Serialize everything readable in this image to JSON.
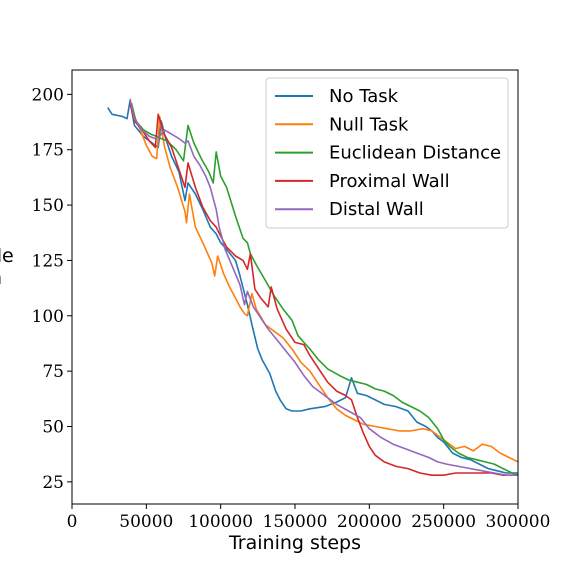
{
  "chart_data": {
    "type": "line",
    "xlabel": "Training steps",
    "ylabel": "de\nh",
    "xlim": [
      0,
      300000
    ],
    "ylim": [
      15,
      211
    ],
    "xticks": [
      0,
      50000,
      100000,
      150000,
      200000,
      250000,
      300000
    ],
    "yticks": [
      25,
      50,
      75,
      100,
      125,
      150,
      175,
      200
    ],
    "grid": false,
    "legend_position": "top-right",
    "series": [
      {
        "name": "No Task",
        "color": "#1f77b4",
        "points": [
          [
            24000,
            194
          ],
          [
            27000,
            191
          ],
          [
            34000,
            190
          ],
          [
            37000,
            189
          ],
          [
            39000,
            197
          ],
          [
            42000,
            186
          ],
          [
            48000,
            181
          ],
          [
            54000,
            178
          ],
          [
            58000,
            176
          ],
          [
            60000,
            188
          ],
          [
            63000,
            180
          ],
          [
            67000,
            172
          ],
          [
            72000,
            165
          ],
          [
            76000,
            152
          ],
          [
            78000,
            160
          ],
          [
            83000,
            155
          ],
          [
            88000,
            148
          ],
          [
            93000,
            140
          ],
          [
            97000,
            137
          ],
          [
            100000,
            133
          ],
          [
            104000,
            130
          ],
          [
            110000,
            125
          ],
          [
            113000,
            118
          ],
          [
            116000,
            110
          ],
          [
            118000,
            105
          ],
          [
            121000,
            96
          ],
          [
            125000,
            85
          ],
          [
            128000,
            80
          ],
          [
            133000,
            74
          ],
          [
            137000,
            66
          ],
          [
            140000,
            62
          ],
          [
            144000,
            58
          ],
          [
            148000,
            57
          ],
          [
            154000,
            57
          ],
          [
            160000,
            58
          ],
          [
            170000,
            59
          ],
          [
            178000,
            61
          ],
          [
            184000,
            63
          ],
          [
            188000,
            72
          ],
          [
            192000,
            65
          ],
          [
            198000,
            64
          ],
          [
            204000,
            62
          ],
          [
            210000,
            60
          ],
          [
            218000,
            59
          ],
          [
            226000,
            57
          ],
          [
            232000,
            52
          ],
          [
            238000,
            50
          ],
          [
            242000,
            48
          ],
          [
            246000,
            45
          ],
          [
            250000,
            43
          ],
          [
            256000,
            38
          ],
          [
            262000,
            36
          ],
          [
            268000,
            35
          ],
          [
            274000,
            33
          ],
          [
            280000,
            31
          ],
          [
            286000,
            30
          ],
          [
            292000,
            29
          ],
          [
            300000,
            29
          ]
        ]
      },
      {
        "name": "Null Task",
        "color": "#ff7f0e",
        "points": [
          [
            39000,
            196
          ],
          [
            42000,
            190
          ],
          [
            46000,
            184
          ],
          [
            50000,
            177
          ],
          [
            54000,
            172
          ],
          [
            57000,
            171
          ],
          [
            59000,
            190
          ],
          [
            62000,
            177
          ],
          [
            66000,
            167
          ],
          [
            71000,
            158
          ],
          [
            76000,
            147
          ],
          [
            77000,
            142
          ],
          [
            79000,
            155
          ],
          [
            83000,
            140
          ],
          [
            88000,
            133
          ],
          [
            94000,
            124
          ],
          [
            96000,
            118
          ],
          [
            98000,
            127
          ],
          [
            102000,
            119
          ],
          [
            106000,
            113
          ],
          [
            110000,
            108
          ],
          [
            113000,
            104
          ],
          [
            116000,
            101
          ],
          [
            118000,
            100
          ],
          [
            121000,
            110
          ],
          [
            124000,
            103
          ],
          [
            130000,
            96
          ],
          [
            136000,
            93
          ],
          [
            142000,
            90
          ],
          [
            148000,
            85
          ],
          [
            154000,
            79
          ],
          [
            160000,
            75
          ],
          [
            166000,
            69
          ],
          [
            172000,
            63
          ],
          [
            178000,
            58
          ],
          [
            184000,
            55
          ],
          [
            190000,
            53
          ],
          [
            196000,
            51
          ],
          [
            204000,
            50
          ],
          [
            212000,
            49
          ],
          [
            220000,
            48
          ],
          [
            228000,
            48
          ],
          [
            236000,
            49
          ],
          [
            242000,
            48
          ],
          [
            246000,
            46
          ],
          [
            252000,
            43
          ],
          [
            258000,
            40
          ],
          [
            264000,
            41
          ],
          [
            270000,
            39
          ],
          [
            276000,
            42
          ],
          [
            282000,
            41
          ],
          [
            288000,
            38
          ],
          [
            294000,
            36
          ],
          [
            300000,
            34
          ]
        ]
      },
      {
        "name": "Euclidean Distance",
        "color": "#2ca02c",
        "points": [
          [
            40000,
            196
          ],
          [
            43000,
            188
          ],
          [
            48000,
            184
          ],
          [
            53000,
            182
          ],
          [
            57000,
            181
          ],
          [
            60000,
            180
          ],
          [
            64000,
            179
          ],
          [
            70000,
            175
          ],
          [
            75000,
            170
          ],
          [
            78000,
            186
          ],
          [
            82000,
            178
          ],
          [
            87000,
            171
          ],
          [
            92000,
            165
          ],
          [
            95000,
            160
          ],
          [
            97000,
            174
          ],
          [
            100000,
            163
          ],
          [
            104000,
            158
          ],
          [
            110000,
            145
          ],
          [
            115000,
            135
          ],
          [
            118000,
            133
          ],
          [
            120000,
            128
          ],
          [
            124000,
            123
          ],
          [
            130000,
            116
          ],
          [
            136000,
            109
          ],
          [
            142000,
            103
          ],
          [
            148000,
            98
          ],
          [
            152000,
            91
          ],
          [
            156000,
            88
          ],
          [
            160000,
            85
          ],
          [
            166000,
            80
          ],
          [
            172000,
            76
          ],
          [
            180000,
            73
          ],
          [
            186000,
            71
          ],
          [
            192000,
            70
          ],
          [
            198000,
            69
          ],
          [
            204000,
            67
          ],
          [
            210000,
            66
          ],
          [
            216000,
            64
          ],
          [
            222000,
            61
          ],
          [
            228000,
            59
          ],
          [
            234000,
            57
          ],
          [
            240000,
            54
          ],
          [
            246000,
            49
          ],
          [
            250000,
            44
          ],
          [
            254000,
            41
          ],
          [
            260000,
            38
          ],
          [
            266000,
            36
          ],
          [
            272000,
            35
          ],
          [
            278000,
            34
          ],
          [
            284000,
            33
          ],
          [
            290000,
            31
          ],
          [
            296000,
            29
          ],
          [
            300000,
            28
          ]
        ]
      },
      {
        "name": "Proximal Wall",
        "color": "#d62728",
        "points": [
          [
            39000,
            196
          ],
          [
            42000,
            188
          ],
          [
            47000,
            184
          ],
          [
            52000,
            179
          ],
          [
            56000,
            176
          ],
          [
            58000,
            191
          ],
          [
            62000,
            182
          ],
          [
            67000,
            176
          ],
          [
            72000,
            166
          ],
          [
            76000,
            158
          ],
          [
            78000,
            169
          ],
          [
            83000,
            158
          ],
          [
            88000,
            149
          ],
          [
            93000,
            143
          ],
          [
            97000,
            140
          ],
          [
            100000,
            136
          ],
          [
            104000,
            131
          ],
          [
            110000,
            127
          ],
          [
            115000,
            125
          ],
          [
            118000,
            121
          ],
          [
            120000,
            128
          ],
          [
            123000,
            112
          ],
          [
            127000,
            108
          ],
          [
            132000,
            104
          ],
          [
            134000,
            113
          ],
          [
            138000,
            103
          ],
          [
            144000,
            94
          ],
          [
            150000,
            88
          ],
          [
            156000,
            87
          ],
          [
            160000,
            82
          ],
          [
            166000,
            76
          ],
          [
            172000,
            70
          ],
          [
            178000,
            66
          ],
          [
            184000,
            64
          ],
          [
            188000,
            62
          ],
          [
            192000,
            54
          ],
          [
            196000,
            47
          ],
          [
            200000,
            41
          ],
          [
            204000,
            37
          ],
          [
            210000,
            34
          ],
          [
            218000,
            32
          ],
          [
            226000,
            31
          ],
          [
            234000,
            29
          ],
          [
            242000,
            28
          ],
          [
            250000,
            28
          ],
          [
            258000,
            29
          ],
          [
            266000,
            29
          ],
          [
            274000,
            29
          ],
          [
            282000,
            29
          ],
          [
            290000,
            28
          ],
          [
            300000,
            28
          ]
        ]
      },
      {
        "name": "Distal Wall",
        "color": "#9467bd",
        "points": [
          [
            39000,
            198
          ],
          [
            42000,
            189
          ],
          [
            47000,
            184
          ],
          [
            52000,
            181
          ],
          [
            56000,
            180
          ],
          [
            59000,
            181
          ],
          [
            62000,
            184
          ],
          [
            67000,
            182
          ],
          [
            72000,
            180
          ],
          [
            76000,
            178
          ],
          [
            78000,
            179
          ],
          [
            82000,
            172
          ],
          [
            86000,
            168
          ],
          [
            90000,
            163
          ],
          [
            93000,
            158
          ],
          [
            95000,
            153
          ],
          [
            97000,
            148
          ],
          [
            99000,
            140
          ],
          [
            103000,
            130
          ],
          [
            108000,
            122
          ],
          [
            113000,
            114
          ],
          [
            116000,
            105
          ],
          [
            118000,
            111
          ],
          [
            122000,
            104
          ],
          [
            127000,
            99
          ],
          [
            132000,
            94
          ],
          [
            138000,
            89
          ],
          [
            144000,
            84
          ],
          [
            150000,
            79
          ],
          [
            156000,
            73
          ],
          [
            162000,
            68
          ],
          [
            170000,
            64
          ],
          [
            178000,
            60
          ],
          [
            186000,
            57
          ],
          [
            194000,
            54
          ],
          [
            200000,
            49
          ],
          [
            208000,
            45
          ],
          [
            216000,
            42
          ],
          [
            224000,
            40
          ],
          [
            232000,
            38
          ],
          [
            240000,
            36
          ],
          [
            246000,
            34
          ],
          [
            252000,
            33
          ],
          [
            260000,
            32
          ],
          [
            268000,
            31
          ],
          [
            276000,
            30
          ],
          [
            284000,
            29
          ],
          [
            292000,
            28
          ],
          [
            300000,
            28
          ]
        ]
      }
    ]
  }
}
